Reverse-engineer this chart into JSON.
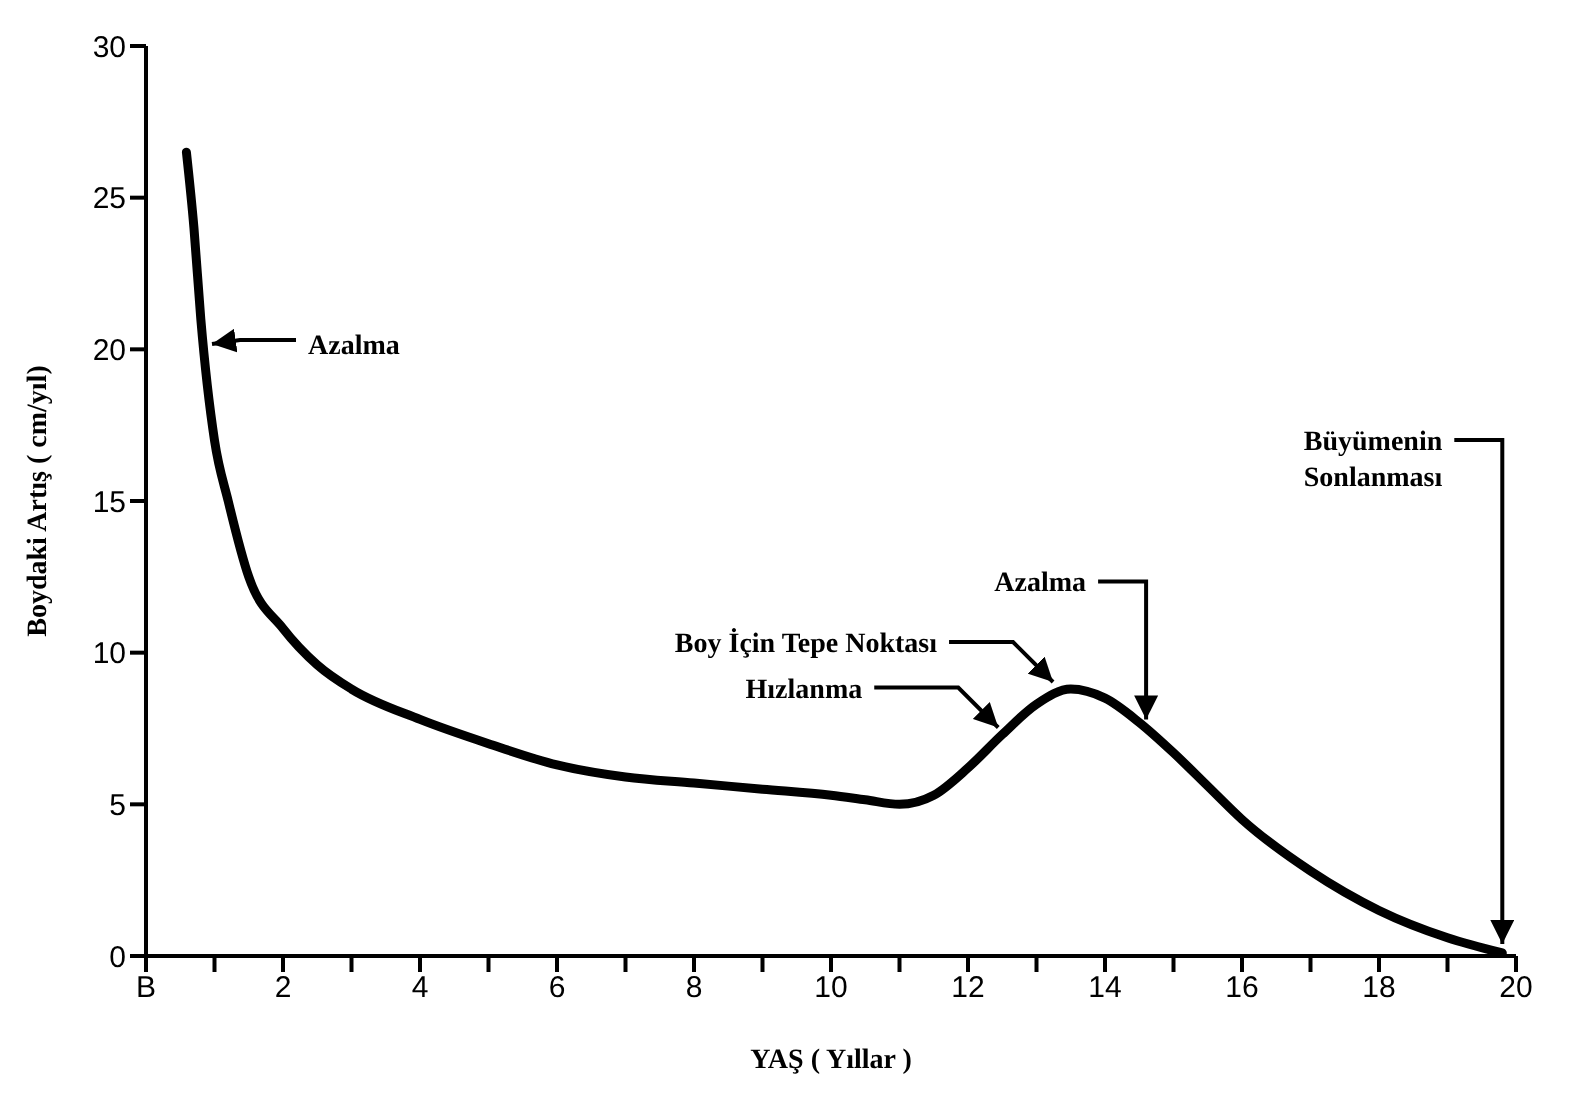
{
  "chart_data": {
    "type": "line",
    "xlabel": "YAŞ ( Yıllar )",
    "ylabel": "Boydaki Artış ( cm/yıl)",
    "x": [
      0.59,
      0.7,
      0.8,
      1,
      1.2,
      1.5,
      2,
      2.5,
      3,
      4,
      5,
      6,
      7,
      8,
      9,
      10,
      10.5,
      11,
      11.5,
      12,
      12.5,
      13,
      13.5,
      14,
      14.5,
      15,
      15.5,
      16,
      17,
      18,
      19,
      19.8
    ],
    "series": [
      {
        "color": "#000000",
        "values": [
          26.5,
          24,
          21,
          17,
          15,
          12.5,
          10.8,
          9.6,
          8.8,
          7.8,
          7.0,
          6.3,
          5.9,
          5.7,
          5.5,
          5.3,
          5.15,
          5.0,
          5.3,
          6.2,
          7.3,
          8.3,
          8.8,
          8.5,
          7.7,
          6.7,
          5.6,
          4.5,
          2.8,
          1.5,
          0.6,
          0.1
        ]
      }
    ],
    "xlim": [
      0,
      20
    ],
    "ylim": [
      0,
      30
    ],
    "xticks": [
      {
        "value": 0,
        "label": "B"
      },
      {
        "value": 1,
        "label": null
      },
      2,
      {
        "value": 3,
        "label": null
      },
      4,
      {
        "value": 5,
        "label": null
      },
      6,
      {
        "value": 7,
        "label": null
      },
      8,
      {
        "value": 9,
        "label": null
      },
      10,
      {
        "value": 11,
        "label": null
      },
      12,
      {
        "value": 13,
        "label": null
      },
      14,
      {
        "value": 15,
        "label": null
      },
      16,
      {
        "value": 17,
        "label": null
      },
      18,
      {
        "value": 19,
        "label": null
      },
      20
    ],
    "yticks": [
      0,
      5,
      10,
      15,
      20,
      25,
      30
    ],
    "grid": false,
    "legend": false,
    "marker": "none",
    "line_style": "solid",
    "annotations": [
      "Azalma",
      {
        "text": "Boy İçin Tepe Noktası",
        "x": 13.3,
        "y": 8.9
      },
      {
        "text": "Hızlanma",
        "x": 12.5,
        "y": 7.4
      },
      {
        "text": "Azalma",
        "x": 14.6,
        "y": 7.6
      },
      {
        "text": "Büyümenin Sonlanması",
        "x": 19.8,
        "y": 0.2
      }
    ]
  }
}
